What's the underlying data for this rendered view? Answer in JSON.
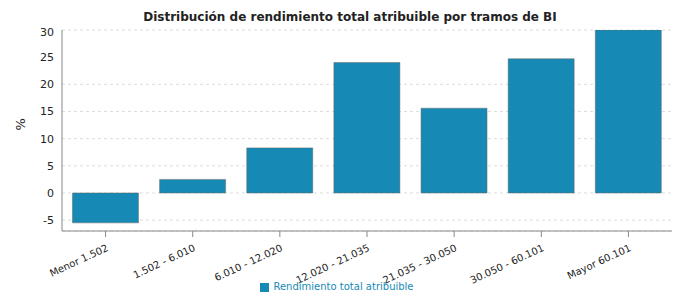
{
  "chart_data": {
    "type": "bar",
    "title": "Distribución de rendimiento total atribuible por tramos de BI",
    "y_label": "%",
    "categories": [
      "Menor 1.502",
      "1.502 - 6.010",
      "6.010 - 12.020",
      "12.020 - 21.035",
      "21.035 - 30.050",
      "30.050 - 60.101",
      "Mayor 60.101"
    ],
    "series": [
      {
        "name": "Rendimiento total atribuible",
        "color": "#168ab4",
        "values": [
          -5.5,
          2.5,
          8.3,
          24,
          15.6,
          24.7,
          30
        ]
      }
    ],
    "ylim": [
      -7,
      30
    ],
    "yticks": [
      -5,
      0,
      5,
      10,
      15,
      20,
      25,
      30
    ],
    "grid": true,
    "legend": "bottom"
  }
}
